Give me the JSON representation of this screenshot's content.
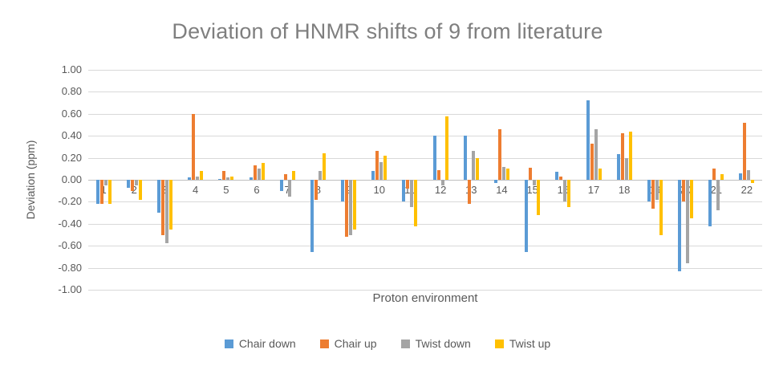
{
  "chart_data": {
    "type": "bar",
    "title": "Deviation of HNMR shifts of 9 from literature",
    "xlabel": "Proton environment",
    "ylabel": "Deviation (ppm)",
    "ylim": [
      -1.0,
      1.0
    ],
    "ytick_step": 0.2,
    "grid": true,
    "legend_position": "bottom",
    "categories": [
      "1",
      "2",
      "3",
      "4",
      "5",
      "6",
      "7",
      "8",
      "9",
      "10",
      "11",
      "12",
      "13",
      "14",
      "15",
      "16",
      "17",
      "18",
      "19",
      "20",
      "21",
      "22"
    ],
    "series": [
      {
        "name": "Chair down",
        "color": "#5B9BD5",
        "values": [
          -0.22,
          -0.07,
          -0.3,
          0.02,
          0.01,
          0.02,
          -0.1,
          -0.66,
          -0.2,
          0.08,
          -0.2,
          0.4,
          0.4,
          -0.03,
          -0.66,
          0.07,
          0.72,
          0.23,
          -0.2,
          -0.83,
          -0.42,
          0.06
        ]
      },
      {
        "name": "Chair up",
        "color": "#ED7D31",
        "values": [
          -0.22,
          -0.1,
          -0.5,
          0.6,
          0.08,
          0.13,
          0.05,
          -0.18,
          -0.52,
          0.26,
          -0.08,
          0.09,
          -0.22,
          0.46,
          0.11,
          0.03,
          0.33,
          0.42,
          -0.26,
          -0.2,
          0.1,
          0.52
        ]
      },
      {
        "name": "Twist down",
        "color": "#A5A5A5",
        "values": [
          -0.05,
          -0.05,
          -0.58,
          0.03,
          0.02,
          0.1,
          -0.15,
          0.08,
          -0.5,
          0.16,
          -0.25,
          -0.05,
          0.26,
          0.12,
          -0.05,
          -0.2,
          0.46,
          0.2,
          -0.18,
          -0.76,
          -0.28,
          0.09
        ]
      },
      {
        "name": "Twist up",
        "color": "#FFC000",
        "values": [
          -0.22,
          -0.18,
          -0.45,
          0.08,
          0.03,
          0.15,
          0.08,
          0.24,
          -0.45,
          0.22,
          -0.42,
          0.58,
          0.2,
          0.1,
          -0.32,
          -0.25,
          0.1,
          0.44,
          -0.5,
          -0.35,
          0.05,
          -0.03
        ]
      }
    ]
  }
}
